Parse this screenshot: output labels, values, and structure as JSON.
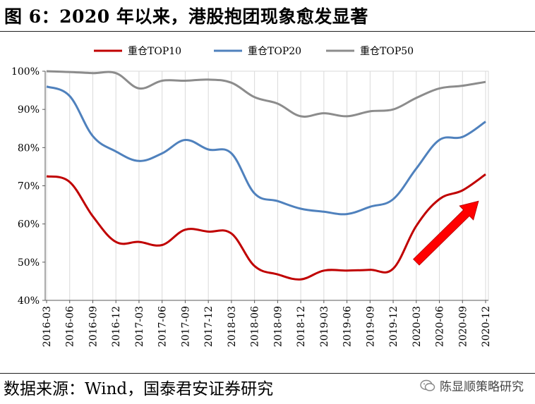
{
  "figure": {
    "title": "图 6：2020 年以来，港股抱团现象愈发显著",
    "source": "数据来源：Wind，国泰君安证券研究",
    "watermark": "陈显顺策略研究",
    "watermark_icon": "wechat-icon"
  },
  "chart_data": {
    "type": "line",
    "title": "",
    "xlabel": "",
    "ylabel": "",
    "ylim": [
      0.4,
      1.0
    ],
    "yticks": [
      "40%",
      "50%",
      "60%",
      "70%",
      "80%",
      "90%",
      "100%"
    ],
    "grid": true,
    "legend_position": "top",
    "categories": [
      "2016-03",
      "2016-06",
      "2016-09",
      "2016-12",
      "2017-03",
      "2017-06",
      "2017-09",
      "2017-12",
      "2018-03",
      "2018-06",
      "2018-09",
      "2018-12",
      "2019-03",
      "2019-06",
      "2019-09",
      "2019-12",
      "2020-03",
      "2020-06",
      "2020-09",
      "2020-12"
    ],
    "series": [
      {
        "name": "重仓TOP10",
        "color": "#C00000",
        "values": [
          0.725,
          0.71,
          0.62,
          0.553,
          0.553,
          0.545,
          0.585,
          0.58,
          0.575,
          0.49,
          0.468,
          0.455,
          0.478,
          0.478,
          0.48,
          0.483,
          0.595,
          0.665,
          0.688,
          0.73
        ]
      },
      {
        "name": "重仓TOP20",
        "color": "#4F81BD",
        "values": [
          0.96,
          0.935,
          0.83,
          0.79,
          0.765,
          0.785,
          0.82,
          0.795,
          0.785,
          0.68,
          0.66,
          0.64,
          0.632,
          0.626,
          0.645,
          0.665,
          0.745,
          0.82,
          0.828,
          0.868
        ]
      },
      {
        "name": "重仓TOP50",
        "color": "#8C8C8C",
        "values": [
          1.0,
          0.998,
          0.995,
          0.995,
          0.955,
          0.975,
          0.975,
          0.978,
          0.97,
          0.932,
          0.915,
          0.882,
          0.89,
          0.882,
          0.895,
          0.9,
          0.93,
          0.955,
          0.962,
          0.972
        ]
      }
    ],
    "annotation": {
      "type": "arrow",
      "color": "#FF0000",
      "from": {
        "x": "2020-03",
        "y": 0.5
      },
      "to": {
        "x": "2020-12",
        "y": 0.66
      }
    }
  }
}
